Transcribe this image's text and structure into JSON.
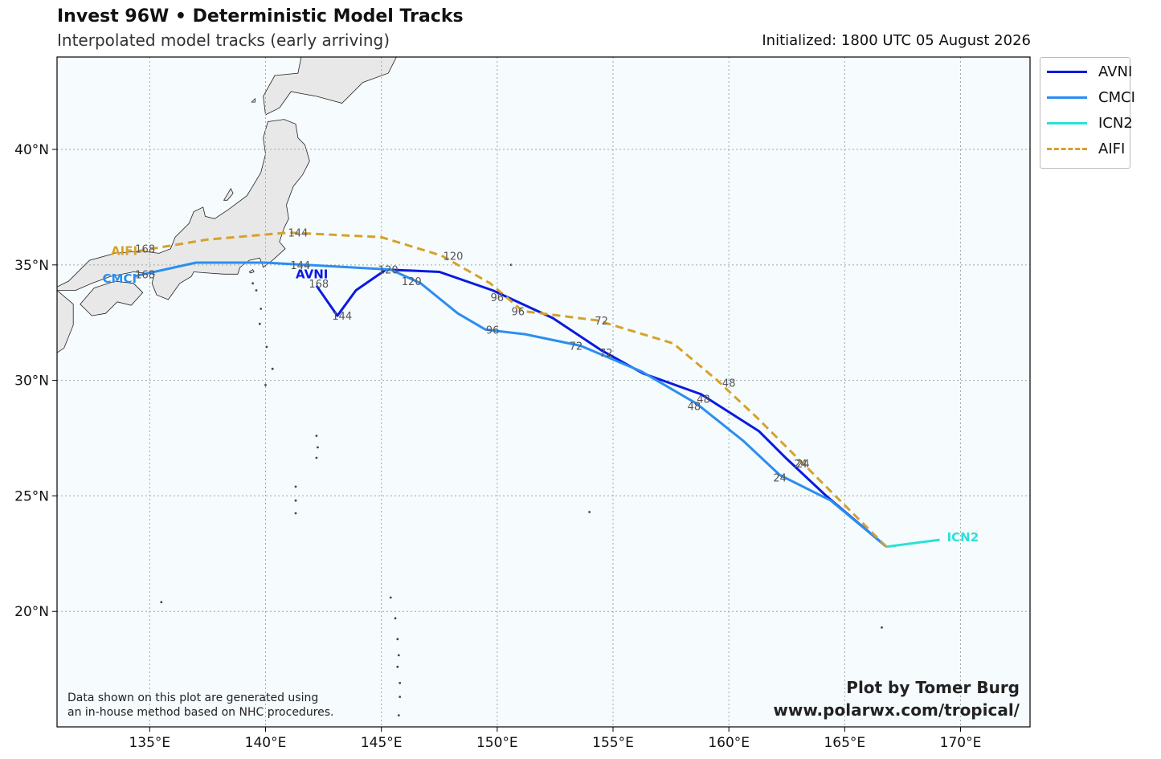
{
  "header": {
    "title": "Invest 96W • Deterministic Model Tracks",
    "subtitle": "Interpolated model tracks (early arriving)",
    "initialized": "Initialized: 1800 UTC 05 August 2026"
  },
  "map": {
    "lon_range": [
      131,
      173
    ],
    "lat_range": [
      15,
      44
    ],
    "lon_ticks": [
      135,
      140,
      145,
      150,
      155,
      160,
      165,
      170
    ],
    "lat_ticks": [
      20,
      25,
      30,
      35,
      40
    ],
    "lon_tick_labels": [
      "135°E",
      "140°E",
      "145°E",
      "150°E",
      "155°E",
      "160°E",
      "165°E",
      "170°E"
    ],
    "lat_tick_labels": [
      "20°N",
      "25°N",
      "30°N",
      "35°N",
      "40°N"
    ],
    "grid": true,
    "land_color": "#e8e8e8",
    "ocean_color": "#f6fbfd"
  },
  "legend": {
    "placement": "outside-top-right",
    "items": [
      {
        "label": "AVNI",
        "color": "#0a1ae0",
        "style": "solid"
      },
      {
        "label": "CMCI",
        "color": "#2b8ef0",
        "style": "solid"
      },
      {
        "label": "ICN2",
        "color": "#2be0d8",
        "style": "solid"
      },
      {
        "label": "AIFI",
        "color": "#d6a22a",
        "style": "dashed"
      }
    ]
  },
  "chart_data": {
    "type": "line",
    "series": [
      {
        "name": "AVNI",
        "color": "#0a1ae0",
        "dash": false,
        "points": [
          [
            166.8,
            22.8
          ],
          [
            164.2,
            25.0
          ],
          [
            162.5,
            26.6
          ],
          [
            161.3,
            27.8
          ],
          [
            158.8,
            29.4
          ],
          [
            156.3,
            30.3
          ],
          [
            154.5,
            31.3
          ],
          [
            152.4,
            32.7
          ],
          [
            149.8,
            33.9
          ],
          [
            147.5,
            34.7
          ],
          [
            145.2,
            34.8
          ],
          [
            143.9,
            33.9
          ],
          [
            143.1,
            32.8
          ],
          [
            142.2,
            34.1
          ]
        ],
        "labels": [
          {
            "text": "24",
            "lon": 163.1,
            "lat": 26.4
          },
          {
            "text": "48",
            "lon": 158.9,
            "lat": 29.2
          },
          {
            "text": "72",
            "lon": 154.7,
            "lat": 31.2
          },
          {
            "text": "96",
            "lon": 150.0,
            "lat": 33.6
          },
          {
            "text": "120",
            "lon": 145.3,
            "lat": 34.8
          },
          {
            "text": "144",
            "lon": 143.3,
            "lat": 32.8
          },
          {
            "text": "168",
            "lon": 142.3,
            "lat": 34.2
          }
        ],
        "name_label": {
          "text": "AVNI",
          "lon": 142.0,
          "lat": 34.6
        }
      },
      {
        "name": "CMCI",
        "color": "#2b8ef0",
        "dash": false,
        "points": [
          [
            166.8,
            22.8
          ],
          [
            164.4,
            24.8
          ],
          [
            162.2,
            25.9
          ],
          [
            160.6,
            27.4
          ],
          [
            158.6,
            29.0
          ],
          [
            156.2,
            30.4
          ],
          [
            153.6,
            31.5
          ],
          [
            151.2,
            32.0
          ],
          [
            149.5,
            32.2
          ],
          [
            148.3,
            32.9
          ],
          [
            146.7,
            34.2
          ],
          [
            145.4,
            34.8
          ],
          [
            140.0,
            35.1
          ],
          [
            137.0,
            35.1
          ],
          [
            134.3,
            34.5
          ]
        ],
        "labels": [
          {
            "text": "24",
            "lon": 162.2,
            "lat": 25.8
          },
          {
            "text": "48",
            "lon": 158.5,
            "lat": 28.9
          },
          {
            "text": "72",
            "lon": 153.4,
            "lat": 31.5
          },
          {
            "text": "96",
            "lon": 149.8,
            "lat": 32.2
          },
          {
            "text": "120",
            "lon": 146.3,
            "lat": 34.3
          },
          {
            "text": "144",
            "lon": 141.5,
            "lat": 35.0
          },
          {
            "text": "168",
            "lon": 134.8,
            "lat": 34.6
          }
        ],
        "name_label": {
          "text": "CMCI",
          "lon": 133.7,
          "lat": 34.4
        }
      },
      {
        "name": "ICN2",
        "color": "#2be0d8",
        "dash": false,
        "points": [
          [
            166.8,
            22.8
          ],
          [
            169.1,
            23.1
          ]
        ],
        "labels": [],
        "name_label": {
          "text": "ICN2",
          "lon": 170.1,
          "lat": 23.2
        }
      },
      {
        "name": "AIFI",
        "color": "#d6a22a",
        "dash": true,
        "points": [
          [
            166.8,
            22.8
          ],
          [
            164.0,
            25.6
          ],
          [
            162.9,
            26.7
          ],
          [
            161.2,
            28.4
          ],
          [
            159.5,
            30.0
          ],
          [
            157.6,
            31.6
          ],
          [
            154.3,
            32.6
          ],
          [
            151.1,
            33.0
          ],
          [
            149.7,
            34.2
          ],
          [
            147.6,
            35.4
          ],
          [
            145.0,
            36.2
          ],
          [
            141.0,
            36.4
          ],
          [
            137.5,
            36.1
          ],
          [
            134.5,
            35.6
          ]
        ],
        "labels": [
          {
            "text": "24",
            "lon": 163.2,
            "lat": 26.4
          },
          {
            "text": "48",
            "lon": 160.0,
            "lat": 29.9
          },
          {
            "text": "72",
            "lon": 154.5,
            "lat": 32.6
          },
          {
            "text": "96",
            "lon": 150.9,
            "lat": 33.0
          },
          {
            "text": "120",
            "lon": 148.1,
            "lat": 35.4
          },
          {
            "text": "144",
            "lon": 141.4,
            "lat": 36.4
          },
          {
            "text": "168",
            "lon": 134.8,
            "lat": 35.7
          }
        ],
        "name_label": {
          "text": "AIFI",
          "lon": 133.9,
          "lat": 35.6
        }
      }
    ]
  },
  "footer": {
    "disclaimer_line1": "Data shown on this plot are generated using",
    "disclaimer_line2": "an in-house method based on NHC procedures.",
    "credit_line1": "Plot by Tomer Burg",
    "credit_line2": "www.polarwx.com/tropical/"
  }
}
